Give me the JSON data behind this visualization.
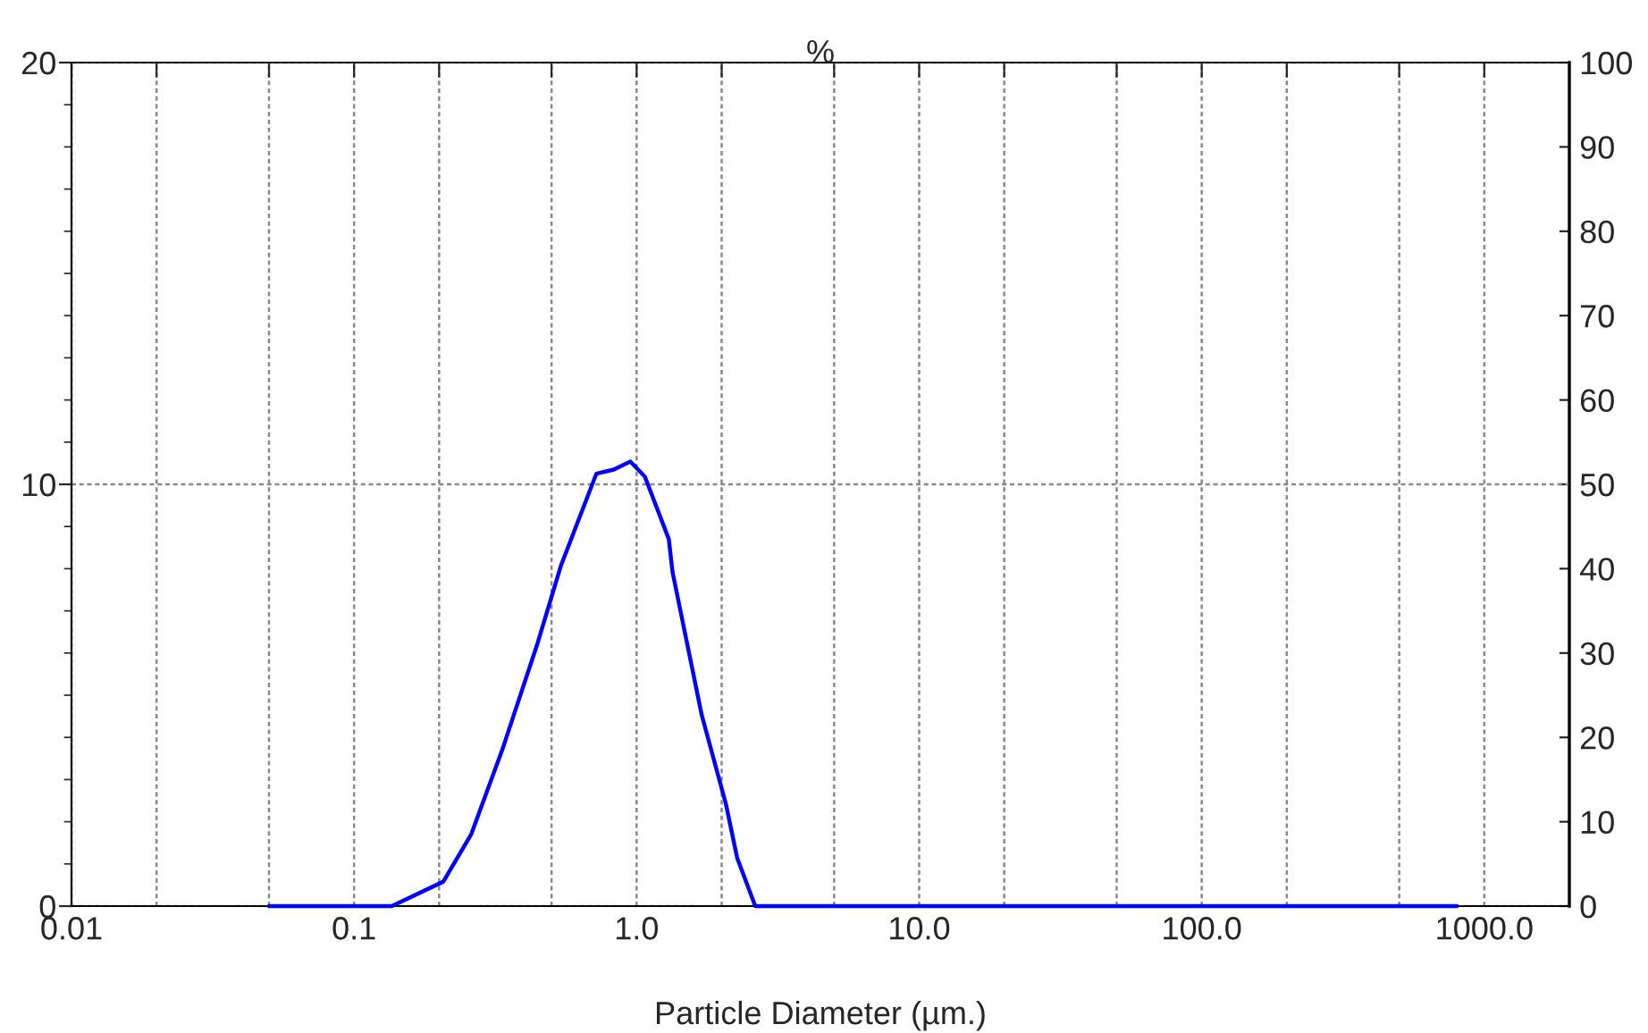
{
  "chart_data": {
    "type": "line",
    "title": "%",
    "xlabel": "Particle Diameter (µm.)",
    "log": "x",
    "xlim": [
      0.01,
      2000
    ],
    "xticks": [
      {
        "value": 0.01,
        "label": "0.01"
      },
      {
        "value": 0.02,
        "label": null
      },
      {
        "value": 0.05,
        "label": null
      },
      {
        "value": 0.1,
        "label": "0.1"
      },
      {
        "value": 0.2,
        "label": null
      },
      {
        "value": 0.5,
        "label": null
      },
      {
        "value": 1,
        "label": "1.0"
      },
      {
        "value": 2,
        "label": null
      },
      {
        "value": 5,
        "label": null
      },
      {
        "value": 10,
        "label": "10.0"
      },
      {
        "value": 20,
        "label": null
      },
      {
        "value": 50,
        "label": null
      },
      {
        "value": 100,
        "label": "100.0"
      },
      {
        "value": 200,
        "label": null
      },
      {
        "value": 500,
        "label": null
      },
      {
        "value": 1000,
        "label": "1000.0"
      }
    ],
    "ylim": [
      0,
      20
    ],
    "yticks": [
      0,
      10,
      20
    ],
    "y2lim": [
      0,
      100
    ],
    "y2ticks": [
      0,
      10,
      20,
      30,
      40,
      50,
      60,
      70,
      80,
      90,
      100
    ],
    "grid": true,
    "line_style": "solid",
    "marker": "none",
    "series": [
      {
        "color": "#0000ff",
        "x": [
          0.05,
          0.1,
          0.136,
          0.207,
          0.26,
          0.334,
          0.446,
          0.539,
          0.72,
          0.83,
          0.95,
          1.07,
          1.3,
          1.34,
          1.7,
          2.07,
          2.27,
          2.63,
          10,
          100,
          800
        ],
        "values": [
          0,
          0,
          0,
          0.58,
          1.71,
          3.69,
          6.23,
          8.06,
          10.25,
          10.35,
          10.54,
          10.18,
          8.7,
          7.92,
          4.53,
          2.42,
          1.14,
          0,
          0,
          0,
          0
        ]
      }
    ]
  }
}
